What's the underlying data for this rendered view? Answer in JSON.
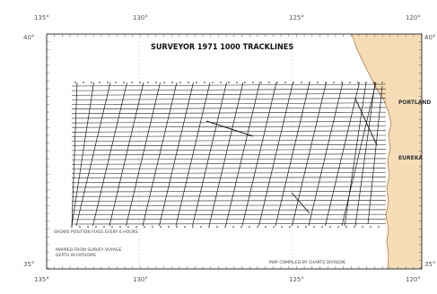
{
  "map": {
    "title": "SURVEYOR 1971 1000 TRACKLINES",
    "top_labels": [
      "135°",
      "130°",
      "125°",
      "120°"
    ],
    "bottom_labels": [
      "135°",
      "130°",
      "125°",
      "120°"
    ],
    "left_labels": [
      "40°",
      "35°"
    ],
    "right_labels": [
      "40°",
      "35°"
    ],
    "legend_lines": [
      "SHOWS POSITION FIXES EVERY 6 HOURS",
      "MAPPED FROM SURVEY VOYAGE",
      "DEPTH IN FATHOMS"
    ],
    "credit": "MAP COMPILED BY CHARTS DIVISION",
    "place_labels": [
      "PORTLAND",
      "EUREKA"
    ],
    "colors": {
      "land": "#f6ddb7",
      "coast": "#b07a40",
      "tracks": "#1a1a1a",
      "frame": "#222222"
    }
  }
}
